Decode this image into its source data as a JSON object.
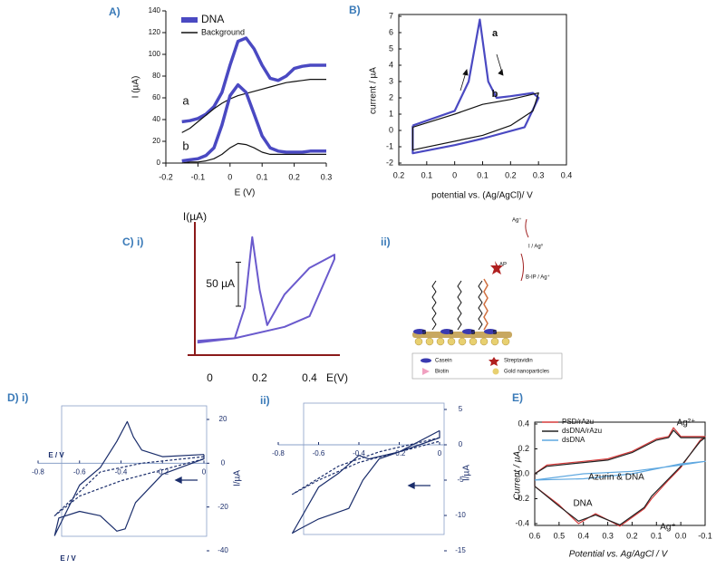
{
  "chart_data": [
    {
      "type": "line",
      "label": "A)",
      "xlabel": "E (V)",
      "ylabel": "I  (µA)",
      "annotations": [
        "a",
        "b"
      ],
      "xlim": [
        -0.2,
        0.3
      ],
      "ylim": [
        0,
        140
      ],
      "xticks": [
        -0.2,
        -0.1,
        0,
        0.1,
        0.2,
        0.3
      ],
      "yticks": [
        0,
        20,
        40,
        60,
        80,
        100,
        120,
        140
      ],
      "x": [
        -0.15,
        -0.125,
        -0.1,
        -0.075,
        -0.05,
        -0.025,
        0,
        0.025,
        0.05,
        0.075,
        0.1,
        0.125,
        0.15,
        0.175,
        0.2,
        0.225,
        0.25,
        0.275,
        0.3
      ],
      "series": [
        {
          "name": "DNA",
          "color": "#4a49c2",
          "values": [
            38,
            39,
            41,
            45,
            52,
            65,
            90,
            112,
            115,
            105,
            90,
            78,
            76,
            80,
            87,
            89,
            90,
            90,
            90
          ]
        },
        {
          "name": "Background",
          "color": "#111111",
          "values": [
            28,
            32,
            38,
            44,
            50,
            55,
            59,
            62,
            64,
            66,
            68,
            70,
            72,
            74,
            75,
            76,
            77,
            77,
            77
          ]
        },
        {
          "color": "#4a49c2",
          "values": [
            2,
            3,
            4,
            7,
            14,
            35,
            62,
            72,
            65,
            45,
            25,
            14,
            11,
            10,
            10,
            10,
            11,
            11,
            11
          ]
        },
        {
          "color": "#111111",
          "values": [
            0,
            1,
            1,
            2,
            4,
            8,
            14,
            18,
            17,
            14,
            10,
            8,
            8,
            8,
            8,
            8,
            8,
            8,
            8
          ]
        }
      ]
    },
    {
      "type": "line",
      "label": "B)",
      "xlabel": "potential vs. (Ag/AgCl)/ V",
      "ylabel": "current / µA",
      "annotations": [
        "a",
        "b"
      ],
      "xlim": [
        -0.2,
        0.4
      ],
      "ylim": [
        -2,
        7
      ],
      "xticks": [
        {
          "value": -0.2,
          "label": "0.2"
        },
        {
          "value": -0.1,
          "label": "0.1"
        },
        0,
        0.1,
        0.2,
        0.3,
        0.4
      ],
      "yticks": [
        -2,
        -1,
        0,
        1,
        2,
        3,
        4,
        5,
        6,
        7
      ],
      "series": [
        {
          "color": "#4a49c2",
          "x": [
            -0.15,
            0,
            0.05,
            0.09,
            0.12,
            0.15,
            0.2,
            0.28,
            0.3,
            0.25,
            0.1,
            0,
            -0.15,
            -0.15
          ],
          "values": [
            0.3,
            1.2,
            3,
            6.8,
            3,
            2,
            2.1,
            2.3,
            2,
            0.2,
            -0.5,
            -0.9,
            -1.4,
            0.3
          ]
        },
        {
          "color": "#111111",
          "x": [
            -0.15,
            0,
            0.1,
            0.2,
            0.3,
            0.28,
            0.2,
            0.1,
            -0.15,
            -0.15
          ],
          "values": [
            0.2,
            1,
            1.6,
            1.9,
            2.3,
            1.2,
            0.3,
            -0.3,
            -1.2,
            0.2
          ]
        }
      ]
    },
    {
      "type": "line",
      "label": "C) i)",
      "xlabel": "E(V)",
      "ylabel": "I(µA)",
      "scalebar": {
        "value": 50,
        "label": "50 µA"
      },
      "xlim": [
        -0.06,
        0.5
      ],
      "ylim": [
        -10,
        200
      ],
      "xticks": [
        0,
        0.2,
        0.4
      ],
      "series": [
        {
          "color": "#6a5acd",
          "x": [
            -0.05,
            0.1,
            0.14,
            0.17,
            0.2,
            0.23,
            0.3,
            0.4,
            0.5,
            0.5,
            0.4,
            0.3,
            0.1,
            -0.05
          ],
          "values": [
            0,
            5,
            40,
            120,
            60,
            20,
            55,
            85,
            100,
            95,
            30,
            18,
            5,
            2
          ]
        }
      ]
    },
    {
      "type": "line",
      "label": "D) i)",
      "xlabel": "E / V",
      "ylabel": "I/µA",
      "xlim": [
        -0.8,
        0
      ],
      "ylim": [
        -40,
        20
      ],
      "xticks": [
        -0.8,
        -0.6,
        -0.4,
        -0.2,
        0
      ],
      "yticks": [
        -40,
        -20,
        0,
        20
      ],
      "series": [
        {
          "color": "#1a2d6b",
          "x": [
            0,
            -0.2,
            -0.3,
            -0.34,
            -0.37,
            -0.42,
            -0.5,
            -0.6,
            -0.72,
            -0.7,
            -0.6,
            -0.5,
            -0.42,
            -0.38,
            -0.33,
            -0.2,
            0,
            0
          ],
          "values": [
            4,
            3,
            6,
            12,
            19,
            10,
            -2,
            -10,
            -33,
            -25,
            -22,
            -24,
            -31,
            -30,
            -18,
            -5,
            2,
            4
          ]
        },
        {
          "color": "#1a2d6b",
          "style": "dashed",
          "x": [
            0,
            -0.3,
            -0.5,
            -0.72,
            -0.6,
            -0.4,
            -0.2,
            0
          ],
          "values": [
            3,
            0,
            -4,
            -24,
            -15,
            -8,
            -3,
            2
          ]
        }
      ]
    },
    {
      "type": "line",
      "label": "ii)",
      "ylabel": "I/µA",
      "xlim": [
        -0.8,
        0
      ],
      "ylim": [
        -15,
        5
      ],
      "xticks": [
        -0.8,
        -0.6,
        -0.4,
        -0.2,
        0
      ],
      "yticks": [
        -15,
        -10,
        -5,
        0,
        5
      ],
      "series": [
        {
          "color": "#1a2d6b",
          "x": [
            0,
            -0.2,
            -0.35,
            -0.4,
            -0.5,
            -0.6,
            -0.73,
            -0.7,
            -0.6,
            -0.45,
            -0.38,
            -0.3,
            -0.1,
            0,
            0
          ],
          "values": [
            2,
            -1,
            -2,
            -1.5,
            -4,
            -6,
            -12.5,
            -12,
            -10.5,
            -9,
            -5,
            -2,
            0,
            1,
            2
          ]
        },
        {
          "color": "#1a2d6b",
          "style": "dashed",
          "x": [
            0,
            -0.3,
            -0.5,
            -0.73,
            -0.6,
            -0.4,
            0
          ],
          "values": [
            1,
            -1,
            -3,
            -7,
            -5,
            -2.5,
            0.5
          ]
        }
      ]
    },
    {
      "type": "line",
      "label": "E)",
      "xlabel": "Potential vs. Ag/AgCl / V",
      "ylabel": "Current / µA",
      "annotations": [
        "Ag²⁺",
        "Azurin & DNA",
        "DNA",
        "Ag⁺"
      ],
      "xlim": [
        0.6,
        -0.1
      ],
      "ylim": [
        -0.4,
        0.4
      ],
      "xticks": [
        0.6,
        0.5,
        0.4,
        0.3,
        0.2,
        0.1,
        {
          "value": 0,
          "label": "0.0"
        },
        -0.1
      ],
      "yticks": [
        -0.4,
        -0.2,
        {
          "value": 0,
          "label": "0.0"
        },
        0.2,
        0.4
      ],
      "series": [
        {
          "name": "PSD/rAzu",
          "color": "#d63a3a",
          "x": [
            0.6,
            0.5,
            0.42,
            0.35,
            0.25,
            0.15,
            0.12,
            0.05,
            0,
            -0.08,
            -0.1,
            -0.08,
            0,
            0.03,
            0.05,
            0.1,
            0.2,
            0.3,
            0.4,
            0.55,
            0.6,
            0.6
          ],
          "values": [
            -0.1,
            -0.25,
            -0.4,
            -0.32,
            -0.42,
            -0.28,
            -0.2,
            -0.05,
            0.05,
            0.27,
            0.3,
            0.3,
            0.3,
            0.37,
            0.3,
            0.28,
            0.18,
            0.12,
            0.1,
            0.07,
            0,
            -0.1
          ]
        },
        {
          "name": "dsDNA/rAzu",
          "color": "#222222",
          "x": [
            0.6,
            0.5,
            0.42,
            0.35,
            0.25,
            0.15,
            0.12,
            0.05,
            0,
            -0.08,
            -0.1,
            -0.08,
            0,
            0.03,
            0.05,
            0.1,
            0.2,
            0.3,
            0.4,
            0.55,
            0.6,
            0.6
          ],
          "values": [
            -0.1,
            -0.26,
            -0.38,
            -0.33,
            -0.41,
            -0.27,
            -0.18,
            -0.04,
            0.06,
            0.26,
            0.29,
            0.29,
            0.29,
            0.35,
            0.29,
            0.27,
            0.17,
            0.11,
            0.09,
            0.06,
            0,
            -0.1
          ]
        },
        {
          "name": "dsDNA",
          "color": "#5fa8e0",
          "x": [
            0.6,
            0.4,
            0.2,
            0,
            -0.1,
            0,
            0.2,
            0.4,
            0.6
          ],
          "values": [
            -0.05,
            -0.04,
            0,
            0.08,
            0.1,
            0.07,
            0.02,
            0,
            -0.05
          ]
        }
      ]
    }
  ],
  "scheme": {
    "label": "ii)",
    "labels": [
      "Ag⁺",
      "I / Ag⁰",
      "AP",
      "B-IP / Ag⁺"
    ],
    "sites": [
      "S",
      "S",
      "S",
      "S"
    ],
    "legend": [
      "Casein",
      "Streptavidin",
      "Biotin",
      "Gold nanoparticles"
    ]
  }
}
